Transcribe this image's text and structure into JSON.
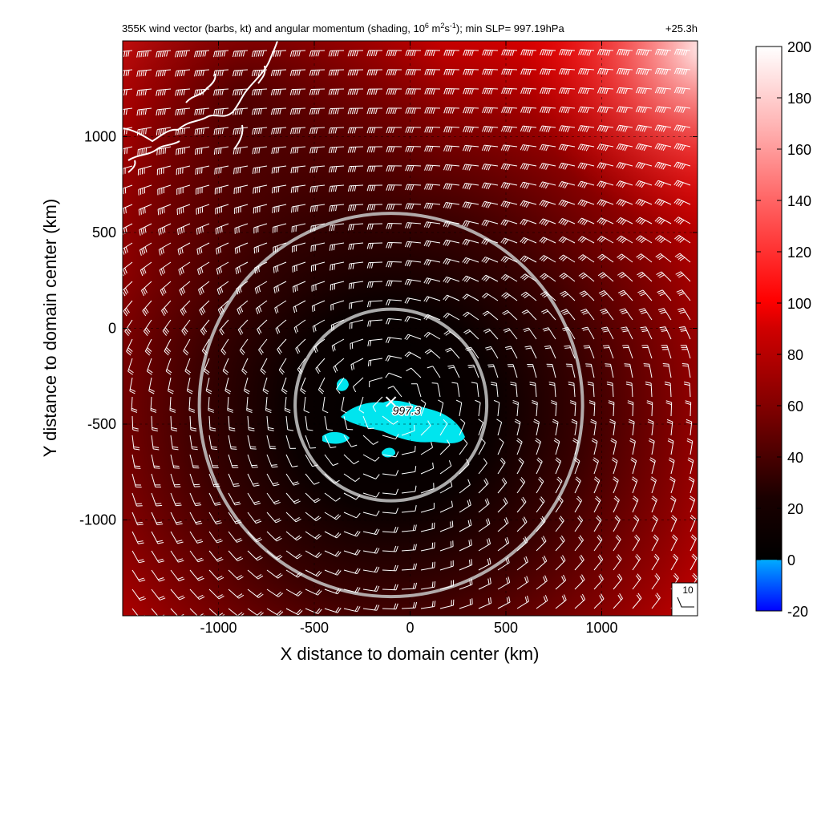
{
  "chart_data": {
    "type": "heatmap",
    "title_parts": {
      "a": "355K wind vector (barbs, kt) and angular momentum (shading, 10",
      "a_sup": "6",
      "b": " m",
      "b_sup": "2",
      "c": "s",
      "c_sup": "-1",
      "d": "); min SLP= 997.19hPa"
    },
    "time_label": "+25.3h",
    "xlabel": "X distance to domain center (km)",
    "ylabel": "Y distance to domain center (km)",
    "xlim": [
      -1500,
      1500
    ],
    "ylim": [
      -1500,
      1500
    ],
    "x_ticks": [
      -1000,
      -500,
      0,
      500,
      1000
    ],
    "y_ticks": [
      1000,
      500,
      0,
      -500,
      -1000
    ],
    "colorbar": {
      "min": -20,
      "max": 200,
      "ticks": [
        200,
        180,
        160,
        140,
        120,
        100,
        80,
        60,
        40,
        20,
        0,
        -20
      ]
    },
    "center": {
      "x": -100,
      "y": -400
    },
    "circles_radius_km": [
      500,
      1000
    ],
    "slp_label": "997.3",
    "barb_legend": "10",
    "grid": true
  }
}
